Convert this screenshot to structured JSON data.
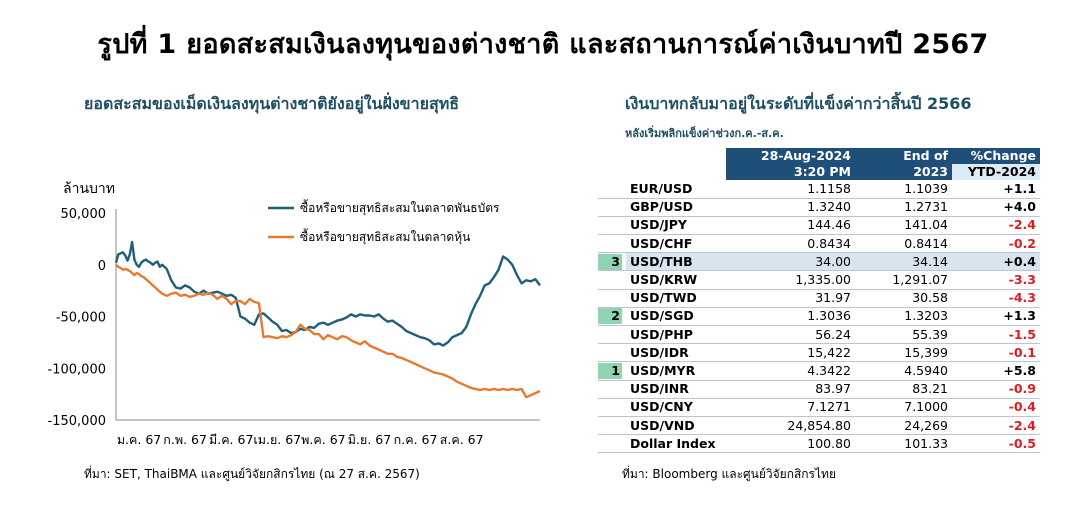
{
  "title": "รูปที่ 1 ยอดสะสมเงินลงทุนของต่างชาติ และสถานการณ์ค่าเงินบาทปี 2567",
  "left_chart": {
    "subtitle": "ยอดสะสมของเม็ดเงินลงทุนต่างชาติยังอยู่ในฝั่งขายสุทธิ",
    "y_unit": "ล้านบาท",
    "source": "ที่มา: SET, ThaiBMA และศูนย์วิจัยกสิกรไทย (ณ 27 ส.ค. 2567)",
    "colors": {
      "bond": "#1f5f7a",
      "equity": "#e87a2f"
    }
  },
  "chart_data": {
    "type": "line",
    "title": "ยอดสะสมของเม็ดเงินลงทุนต่างชาติยังอยู่ในฝั่งขายสุทธิ",
    "ylabel": "ล้านบาท",
    "ylim": [
      -150000,
      50000
    ],
    "yticks": [
      50000,
      0,
      -50000,
      -100000,
      -150000
    ],
    "ytick_labels": [
      "50,000",
      "0",
      "-50,000",
      "-100,000",
      "-150,000"
    ],
    "xtick_labels": [
      "ม.ค. 67",
      "ก.พ. 67",
      "มี.ค. 67",
      "เม.ย. 67",
      "พ.ค. 67",
      "มิ.ย. 67",
      "ก.ค. 67",
      "ส.ค. 67"
    ],
    "legend_position": "top-right",
    "grid": false,
    "x_months": [
      0.0,
      0.05,
      0.1,
      0.15,
      0.2,
      0.25,
      0.3,
      0.35,
      0.4,
      0.45,
      0.5,
      0.55,
      0.6,
      0.65,
      0.7,
      0.75,
      0.8,
      0.85,
      0.9,
      0.95,
      1.0,
      1.1,
      1.2,
      1.3,
      1.4,
      1.5,
      1.6,
      1.7,
      1.8,
      1.9,
      2.0,
      2.1,
      2.2,
      2.3,
      2.4,
      2.5,
      2.6,
      2.7,
      2.8,
      2.9,
      3.0,
      3.1,
      3.2,
      3.3,
      3.4,
      3.5,
      3.6,
      3.7,
      3.8,
      3.9,
      4.0,
      4.1,
      4.2,
      4.3,
      4.4,
      4.5,
      4.6,
      4.7,
      4.8,
      4.9,
      5.0,
      5.1,
      5.2,
      5.3,
      5.4,
      5.5,
      5.6,
      5.7,
      5.8,
      5.9,
      6.0,
      6.1,
      6.2,
      6.3,
      6.4,
      6.5,
      6.6,
      6.7,
      6.8,
      6.9,
      7.0,
      7.1,
      7.2,
      7.3,
      7.4,
      7.5,
      7.6,
      7.7,
      7.8,
      7.9
    ],
    "series": [
      {
        "name": "ซื้อหรือขายสุทธิสะสมในตลาดพันธบัตร",
        "values": [
          2000,
          10000,
          11000,
          12000,
          9000,
          4000,
          10000,
          22000,
          5000,
          0,
          -2000,
          2000,
          4000,
          5000,
          3000,
          2000,
          0,
          2000,
          3000,
          -2000,
          0,
          -4000,
          -15000,
          -22000,
          -23000,
          -20000,
          -22000,
          -26000,
          -28000,
          -25000,
          -28000,
          -27000,
          -26000,
          -28000,
          -30000,
          -29000,
          -32000,
          -50000,
          -52000,
          -56000,
          -58000,
          -48000,
          -47000,
          -51000,
          -55000,
          -58000,
          -64000,
          -63000,
          -66000,
          -65000,
          -62000,
          -63000,
          -60000,
          -61000,
          -57000,
          -56000,
          -58000,
          -56000,
          -54000,
          -53000,
          -51000,
          -48000,
          -50000,
          -48000,
          -49000,
          -49000,
          -50000,
          -48000,
          -52000,
          -55000,
          -54000,
          -57000,
          -60000,
          -64000,
          -66000,
          -68000,
          -70000,
          -71000,
          -73000,
          -77000,
          -76000,
          -78000,
          -75000,
          -70000,
          -68000,
          -66000,
          -60000,
          -48000,
          -38000,
          -30000
        ],
        "tail_x_months": [
          8.0,
          8.1,
          8.2,
          8.3,
          8.4,
          8.5,
          8.6,
          8.7,
          8.8,
          8.9,
          9.0,
          9.1,
          9.2
        ],
        "tail_values": [
          -20000,
          -18000,
          -12000,
          -5000,
          8000,
          5000,
          0,
          -10000,
          -18000,
          -15000,
          -16000,
          -14000,
          -20000
        ]
      },
      {
        "name": "ซื้อหรือขายสุทธิสะสมในตลาดหุ้น",
        "values": [
          0,
          -2000,
          -3000,
          -5000,
          -4000,
          -5000,
          -6000,
          -8000,
          -10000,
          -8000,
          -9000,
          -11000,
          -12000,
          -14000,
          -16000,
          -18000,
          -20000,
          -22000,
          -24000,
          -26000,
          -28000,
          -30000,
          -28000,
          -27000,
          -30000,
          -29000,
          -31000,
          -30000,
          -28000,
          -29000,
          -27000,
          -29000,
          -33000,
          -30000,
          -33000,
          -38000,
          -35000,
          -35000,
          -38000,
          -33000,
          -36000,
          -37000,
          -70000,
          -69000,
          -70000,
          -71000,
          -69000,
          -70000,
          -68000,
          -65000,
          -58000,
          -62000,
          -63000,
          -67000,
          -67000,
          -72000,
          -68000,
          -70000,
          -72000,
          -69000,
          -70000,
          -73000,
          -75000,
          -77000,
          -74000,
          -78000,
          -80000,
          -82000,
          -84000,
          -86000,
          -86000,
          -89000,
          -90000,
          -92000,
          -94000,
          -96000,
          -98000,
          -100000,
          -102000,
          -104000,
          -105000,
          -106000,
          -108000,
          -110000,
          -113000,
          -115000,
          -117000,
          -119000,
          -120000,
          -121000
        ],
        "tail_x_months": [
          8.0,
          8.1,
          8.2,
          8.3,
          8.4,
          8.5,
          8.6,
          8.7,
          8.8,
          8.9,
          9.0,
          9.1,
          9.2
        ],
        "tail_values": [
          -120000,
          -121000,
          -120000,
          -121000,
          -120000,
          -121000,
          -120000,
          -121000,
          -120000,
          -128000,
          -126000,
          -124000,
          -122000
        ]
      }
    ]
  },
  "table": {
    "subtitle": "เงินบาทกลับมาอยู่ในระดับที่แข็งค่ากว่าสิ้นปี 2566",
    "subnote": "หลังเริ่มพลิกแข็งค่าช่วงก.ค.-ส.ค.",
    "headers": {
      "col1_line1": "28-Aug-2024",
      "col1_line2": "3:20 PM",
      "col2_line1": "End of",
      "col2_line2": "2023",
      "col3_line1": "%Change",
      "col3_line2": "YTD-2024"
    },
    "rows": [
      {
        "rank": "",
        "pair": "EUR/USD",
        "v1": "1.1158",
        "v2": "1.1039",
        "ch": "+1.1",
        "sign": "pos",
        "hl": false
      },
      {
        "rank": "",
        "pair": "GBP/USD",
        "v1": "1.3240",
        "v2": "1.2731",
        "ch": "+4.0",
        "sign": "pos",
        "hl": false
      },
      {
        "rank": "",
        "pair": "USD/JPY",
        "v1": "144.46",
        "v2": "141.04",
        "ch": "-2.4",
        "sign": "neg",
        "hl": false
      },
      {
        "rank": "",
        "pair": "USD/CHF",
        "v1": "0.8434",
        "v2": "0.8414",
        "ch": "-0.2",
        "sign": "neg",
        "hl": false
      },
      {
        "rank": "3",
        "pair": "USD/THB",
        "v1": "34.00",
        "v2": "34.14",
        "ch": "+0.4",
        "sign": "pos",
        "hl": true
      },
      {
        "rank": "",
        "pair": "USD/KRW",
        "v1": "1,335.00",
        "v2": "1,291.07",
        "ch": "-3.3",
        "sign": "neg",
        "hl": false
      },
      {
        "rank": "",
        "pair": "USD/TWD",
        "v1": "31.97",
        "v2": "30.58",
        "ch": "-4.3",
        "sign": "neg",
        "hl": false
      },
      {
        "rank": "2",
        "pair": "USD/SGD",
        "v1": "1.3036",
        "v2": "1.3203",
        "ch": "+1.3",
        "sign": "pos",
        "hl": false
      },
      {
        "rank": "",
        "pair": "USD/PHP",
        "v1": "56.24",
        "v2": "55.39",
        "ch": "-1.5",
        "sign": "neg",
        "hl": false
      },
      {
        "rank": "",
        "pair": "USD/IDR",
        "v1": "15,422",
        "v2": "15,399",
        "ch": "-0.1",
        "sign": "neg",
        "hl": false
      },
      {
        "rank": "1",
        "pair": "USD/MYR",
        "v1": "4.3422",
        "v2": "4.5940",
        "ch": "+5.8",
        "sign": "pos",
        "hl": false
      },
      {
        "rank": "",
        "pair": "USD/INR",
        "v1": "83.97",
        "v2": "83.21",
        "ch": "-0.9",
        "sign": "neg",
        "hl": false
      },
      {
        "rank": "",
        "pair": "USD/CNY",
        "v1": "7.1271",
        "v2": "7.1000",
        "ch": "-0.4",
        "sign": "neg",
        "hl": false
      },
      {
        "rank": "",
        "pair": "USD/VND",
        "v1": "24,854.80",
        "v2": "24,269",
        "ch": "-2.4",
        "sign": "neg",
        "hl": false
      },
      {
        "rank": "",
        "pair": "Dollar Index",
        "v1": "100.80",
        "v2": "101.33",
        "ch": "-0.5",
        "sign": "neg",
        "hl": false
      }
    ],
    "source": "ที่มา: Bloomberg และศูนย์วิจัยกสิกรไทย"
  }
}
